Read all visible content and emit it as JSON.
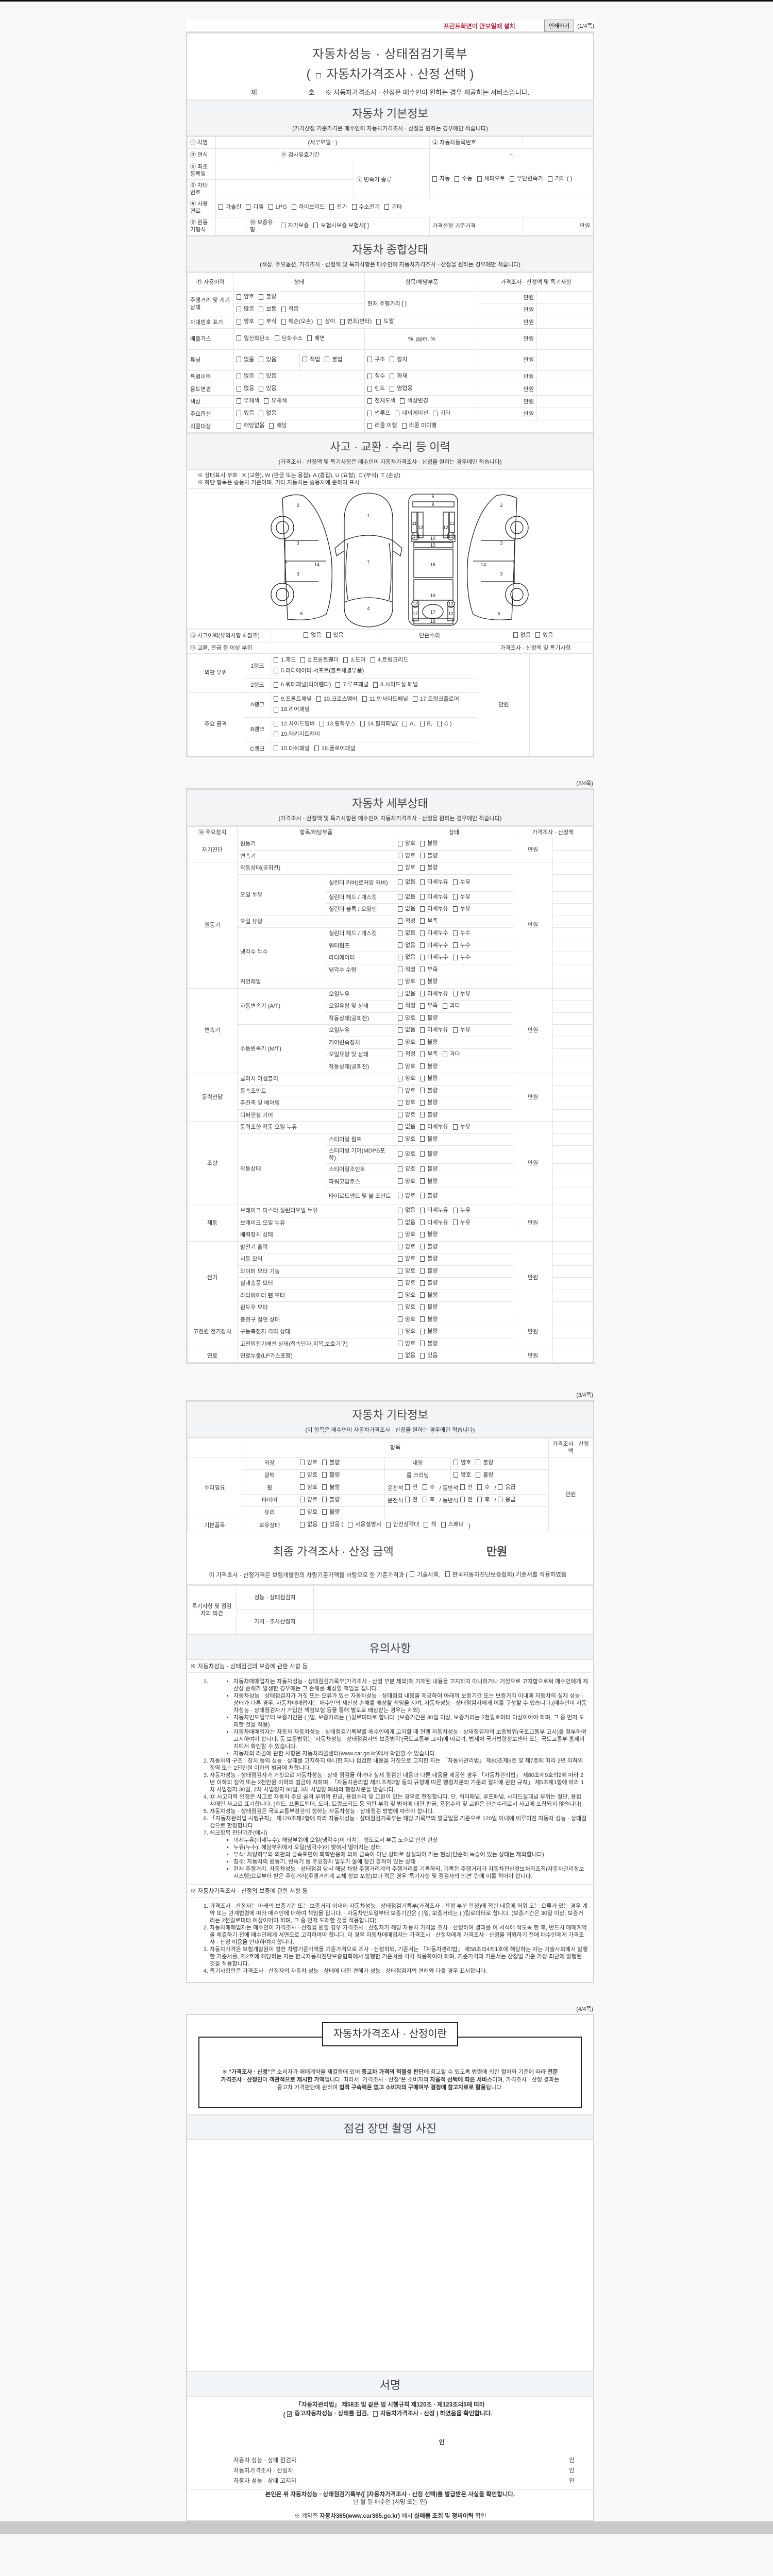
{
  "topbar": {
    "install_link": "프린트화면이 안보일때 설치",
    "print_button": "인쇄하기",
    "page": "(1/4쪽)"
  },
  "title": {
    "line1": "자동차성능 · 상태점검기록부",
    "line2_open": "(",
    "line2": "자동차가격조사 · 산정 선택",
    "line2_close": ")",
    "no_prefix": "제",
    "no_suffix": "호",
    "note": "※ 자동차가격조사 · 산정은 매수인이 원하는 경우 제공하는 서비스입니다."
  },
  "basic": {
    "title": "자동차 기본정보",
    "subtitle": "(가격산정 기준가격은 매수인이 자동차가격조사 · 산정을 원하는 경우에만 적습니다)",
    "car_name": "① 차명",
    "detail_model": "(세부모델 :                          )",
    "reg_no": "② 자동차등록번호",
    "year": "③ 연식",
    "validity": "④ 검사유효기간",
    "tilde": "~",
    "first_reg": "⑤ 최초등록일",
    "vin": "⑥ 차대번호",
    "transmission": "⑦ 변속기 종류",
    "trans_opts": [
      "자동",
      "수동",
      "세미오토",
      "무단변속기",
      "기타 (            )"
    ],
    "fuel": "⑧ 사용연료",
    "fuel_opts": [
      "가솔린",
      "디젤",
      "LPG",
      "하이브리드",
      "전기",
      "수소전기",
      "기타"
    ],
    "engine": "⑨ 원동기형식",
    "warranty": "⑩ 보증유형",
    "warranty_opts": [
      "자가보증",
      "보험사보증 보험사[          ]"
    ],
    "base_price": "가격산정 기준가격",
    "unit": "만원"
  },
  "general": {
    "title": "자동차 종합상태",
    "subtitle": "(색상, 주요옵션, 가격조사 · 산정액 및 특기사항은 매수인이 자동차가격조사 · 산정을 원하는 경우에만 적습니다)",
    "headers": [
      "⑪ 사용이력",
      "상태",
      "항목/해당부품",
      "가격조사 · 산정액 및 특기사항"
    ],
    "rows": [
      {
        "label": "주행거리 및 계기상태",
        "states": [
          [
            "양호",
            "불량"
          ],
          [
            "많음",
            "보통",
            "적음"
          ]
        ],
        "detail": "현재 주행거리 [                        ]",
        "prices": [
          "만원",
          "만원"
        ]
      },
      {
        "label": "차대번호 표기",
        "states": [
          [
            "양호",
            "부식",
            "훼손(오손)",
            "상이",
            "변조(변타)",
            "도말"
          ]
        ],
        "prices": [
          "만원"
        ]
      },
      {
        "label": "배출가스",
        "states": [
          [
            "일산화탄소",
            "탄화수소",
            "매연"
          ]
        ],
        "detail": "%,          ppm,          %",
        "prices": [
          "만원"
        ]
      },
      {
        "label": "튜닝",
        "states": [
          [
            "없음",
            "있음"
          ]
        ],
        "detail_opts": [
          [
            "적법",
            "불법"
          ],
          [
            "구조",
            "장치"
          ]
        ],
        "prices": [
          "만원"
        ]
      },
      {
        "label": "특별이력",
        "states": [
          [
            "없음",
            "있음"
          ]
        ],
        "detail_opts": [
          [
            "침수",
            "화재"
          ]
        ],
        "prices": [
          "만원"
        ]
      },
      {
        "label": "용도변경",
        "states": [
          [
            "없음",
            "있음"
          ]
        ],
        "detail_opts": [
          [
            "렌트",
            "영업용"
          ]
        ],
        "prices": [
          "만원"
        ]
      },
      {
        "label": "색상",
        "states": [
          [
            "무채색",
            "유채색"
          ]
        ],
        "detail_opts": [
          [
            "전체도색",
            "색상변경"
          ]
        ],
        "prices": [
          "만원"
        ]
      },
      {
        "label": "주요옵션",
        "states": [
          [
            "있음",
            "없음"
          ]
        ],
        "detail_opts": [
          [
            "썬루프",
            "네비게이션",
            "기타"
          ]
        ],
        "prices": [
          "만원"
        ]
      },
      {
        "label": "리콜대상",
        "states": [
          [
            "해당없음",
            "해당"
          ]
        ],
        "detail_opts": [
          [
            "리콜 이행",
            "리콜 미이행"
          ]
        ]
      }
    ]
  },
  "accident": {
    "title": "사고 · 교환 · 수리 등 이력",
    "subtitle": "(가격조사 · 산정액 및 특기사항은 매수인이 자동차가격조사 · 산정을 원하는 경우에만 적습니다)",
    "notes": [
      "※ 상태표시 부호 : X (교환), W (판금 또는 용접), A (흠집), U (요철), C (부식), T (손상)",
      "※ 하단 항목은 승용차 기준이며, 기타 자동차는 승용차에 준하여 표시"
    ],
    "history_label": "⑫ 사고이력(유의사항 4.참조)",
    "history_opts": [
      "없음",
      "있음"
    ],
    "simple_label": "단순수리",
    "simple_opts": [
      "없음",
      "있음"
    ],
    "parts_label": "⑬ 교환, 판금 등 이상 부위",
    "price_label": "가격조사 · 산정액 및 특기사항",
    "unit": "만원",
    "groups": [
      {
        "name": "외판 부위",
        "ranks": [
          {
            "rank": "1랭크",
            "parts": [
              "1.후드",
              "2.프론트휀더",
              "3.도어",
              "4.트렁크리드",
              "5.라디에이터 서포트(볼트체결부품)"
            ]
          },
          {
            "rank": "2랭크",
            "parts": [
              "6.쿼터패널(리어휀다)",
              "7.루프패널",
              "8.사이드실 패널"
            ]
          }
        ]
      },
      {
        "name": "주요 골격",
        "ranks": [
          {
            "rank": "A랭크",
            "parts": [
              "9.프론트패널",
              "10.크로스멤버",
              "11.인사이드패널",
              "17.트렁크플로어",
              "18.리어패널"
            ]
          },
          {
            "rank": "B랭크",
            "parts": [
              "12.사이드멤버",
              "13.휠하우스",
              "14.필러패널(",
              "A,",
              "B,",
              "C )",
              "19.패키지트레이"
            ]
          },
          {
            "rank": "C랭크",
            "parts": [
              "15.대쉬패널",
              "16.플로어패널"
            ]
          }
        ]
      }
    ]
  },
  "detail": {
    "page": "(2/4쪽)",
    "title": "자동차 세부상태",
    "subtitle": "(가격조사 · 산정액 및 특기사항은 매수인이 자동차가격조사 · 산정을 원하는 경우에만 적습니다)",
    "headers": [
      "⑭ 주요장치",
      "항목/해당부품",
      "상태",
      "가격조사 · 산정액"
    ],
    "unit": "만원",
    "option_sets": {
      "gb": [
        "양호",
        "불량"
      ],
      "oil": [
        "없음",
        "미세누유",
        "누유"
      ],
      "water": [
        "없음",
        "미세누수",
        "누수"
      ],
      "lv": [
        "적정",
        "부족"
      ],
      "lv3": [
        "적정",
        "부족",
        "과다"
      ],
      "yn": [
        "없음",
        "있음"
      ]
    },
    "groups": [
      {
        "name": "자기진단",
        "rows": [
          {
            "item": "원동기",
            "o": "gb"
          },
          {
            "item": "변속기",
            "o": "gb"
          }
        ]
      },
      {
        "name": "원동기",
        "rows": [
          {
            "item": "작동상태(공회전)",
            "o": "gb"
          },
          {
            "item": "오일 누유",
            "sub": "실린더 커버(로커암 커버)",
            "o": "oil"
          },
          {
            "item": "오일 누유",
            "sub": "실린더 헤드 / 개스킷",
            "o": "oil"
          },
          {
            "item": "오일 누유",
            "sub": "실린더 블록 / 오일팬",
            "o": "oil"
          },
          {
            "item": "오일 유량",
            "o": "lv"
          },
          {
            "item": "냉각수 누수",
            "sub": "실린더 헤드 / 개스킷",
            "o": "water"
          },
          {
            "item": "냉각수 누수",
            "sub": "워터펌프",
            "o": "water"
          },
          {
            "item": "냉각수 누수",
            "sub": "라디에이터",
            "o": "water"
          },
          {
            "item": "냉각수 누수",
            "sub": "냉각수 수량",
            "o": "lv"
          },
          {
            "item": "커먼레일",
            "o": "gb"
          }
        ]
      },
      {
        "name": "변속기",
        "rows": [
          {
            "item": "자동변속기 (A/T)",
            "sub": "오일누유",
            "o": "oil"
          },
          {
            "item": "자동변속기 (A/T)",
            "sub": "오일유량 및 상태",
            "o": "lv3"
          },
          {
            "item": "자동변속기 (A/T)",
            "sub": "작동상태(공회전)",
            "o": "gb"
          },
          {
            "item": "수동변속기 (M/T)",
            "sub": "오일누유",
            "o": "oil"
          },
          {
            "item": "수동변속기 (M/T)",
            "sub": "기어변속장치",
            "o": "gb"
          },
          {
            "item": "수동변속기 (M/T)",
            "sub": "오일유량 및 상태",
            "o": "lv3"
          },
          {
            "item": "수동변속기 (M/T)",
            "sub": "작동상태(공회전)",
            "o": "gb"
          }
        ]
      },
      {
        "name": "동력전달",
        "rows": [
          {
            "item": "클러치 어셈블리",
            "o": "gb"
          },
          {
            "item": "등속조인트",
            "o": "gb"
          },
          {
            "item": "추진축 및 베어링",
            "o": "gb"
          },
          {
            "item": "디퍼렌셜 기어",
            "o": "gb"
          }
        ]
      },
      {
        "name": "조향",
        "rows": [
          {
            "item": "동력조향 작동 오일 누유",
            "o": "oil"
          },
          {
            "item": "작동상태",
            "sub": "스티어링 펌프",
            "o": "gb"
          },
          {
            "item": "작동상태",
            "sub": "스티어링 기어(MDPS포함)",
            "o": "gb"
          },
          {
            "item": "작동상태",
            "sub": "스티어링조인트",
            "o": "gb"
          },
          {
            "item": "작동상태",
            "sub": "파워고압호스",
            "o": "gb"
          },
          {
            "item": "작동상태",
            "sub": "타이로드엔드 및 볼 조인트",
            "o": "gb"
          }
        ]
      },
      {
        "name": "제동",
        "rows": [
          {
            "item": "브레이크 마스터 실린더오일 누유",
            "o": "oil"
          },
          {
            "item": "브레이크 오일 누유",
            "o": "oil"
          },
          {
            "item": "배력장치 상태",
            "o": "gb"
          }
        ]
      },
      {
        "name": "전기",
        "rows": [
          {
            "item": "발전기 출력",
            "o": "gb"
          },
          {
            "item": "시동 모터",
            "o": "gb"
          },
          {
            "item": "와이퍼 모터 기능",
            "o": "gb"
          },
          {
            "item": "실내송풍 모터",
            "o": "gb"
          },
          {
            "item": "라디에이터 팬 모터",
            "o": "gb"
          },
          {
            "item": "윈도우 모터",
            "o": "gb"
          }
        ]
      },
      {
        "name": "고전원 전기장치",
        "rows": [
          {
            "item": "충전구 절연 상태",
            "o": "gb"
          },
          {
            "item": "구동축전지 격리 상태",
            "o": "gb"
          },
          {
            "item": "고전원전기배선 상태(접속단자,피복,보호기구)",
            "o": "gb"
          }
        ]
      },
      {
        "name": "연료",
        "rows": [
          {
            "item": "연료누출(LP가스포함)",
            "o": "yn"
          }
        ]
      }
    ]
  },
  "other": {
    "page": "(3/4쪽)",
    "title": "자동차 기타정보",
    "subtitle": "(이 항목은 매수인이 자동차가격조사 · 산정을 원하는 경우에만 적습니다)",
    "item_header": "항목",
    "price_header": "가격조사 · 산정액",
    "unit": "만원",
    "repair_group": "수리필요",
    "basic_group": "기본품목",
    "rows": [
      {
        "a": "외장",
        "ao": [
          "양호",
          "불량"
        ],
        "b": "내장",
        "bo": [
          "양호",
          "불량"
        ]
      },
      {
        "a": "광택",
        "ao": [
          "양호",
          "불량"
        ],
        "b": "룸 크리닝",
        "bo": [
          "양호",
          "불량"
        ]
      },
      {
        "a": "휠",
        "ao": [
          "양호",
          "불량"
        ],
        "seq": [
          {
            "t": "운전석"
          },
          {
            "c": "전"
          },
          {
            "c": "후"
          },
          {
            "t": "/ 동반석"
          },
          {
            "c": "전"
          },
          {
            "c": "후"
          },
          {
            "t": "/"
          },
          {
            "c": "응급"
          }
        ]
      },
      {
        "a": "타이어",
        "ao": [
          "양호",
          "불량"
        ],
        "seq": [
          {
            "t": "운전석"
          },
          {
            "c": "전"
          },
          {
            "c": "후"
          },
          {
            "t": "/ 동반석"
          },
          {
            "c": "전"
          },
          {
            "c": "후"
          },
          {
            "t": "/"
          },
          {
            "c": "응급"
          }
        ]
      },
      {
        "a": "유리",
        "ao": [
          "양호",
          "불량"
        ]
      }
    ],
    "holding_label": "보유상태",
    "holding_seq": [
      {
        "c": "없음"
      },
      {
        "c": "있음 ("
      },
      {
        "c": "사용설명서"
      },
      {
        "c": "안전삼각대"
      },
      {
        "c": "잭"
      },
      {
        "c": "스패너"
      },
      {
        "t": ")"
      }
    ],
    "final_title": "최종 가격조사 · 산정 금액",
    "final_unit": "만원",
    "final_seq": [
      {
        "t": "이 가격조사 · 산정가격은 보험개발원의 차량기준가액을 바탕으로 한 기준가격과 ("
      },
      {
        "c": "기술사회,"
      },
      {
        "c": "한국자동차진단보증협회) 기준서를 적용하였음"
      }
    ],
    "opinion_label": "특기사항 및 점검자의 의견",
    "inspector": "성능 · 상태점검자",
    "appraiser": "가격 · 조사산정자"
  },
  "notes": {
    "title": "유의사항",
    "s1_heading": "※ 자동차성능 · 상태점검의 보증에 관한 사항 등",
    "s1_item1_bullets": [
      "자동차매매업자는 자동차성능 · 상태점검기록부(가격조사 · 산정 부분 제외)에 기재된 내용을 고지하지 아니하거나 거짓으로 고지함으로써 매수인에게 재산상 손해가 발생한 경우에는 그 손해를 배상할 책임을 집니다.",
      "자동차성능 · 상태점검자가 거짓 또는 오류가 있는 자동차성능 · 상태점검 내용을 제공하여 아래의 보증기간 또는 보증거리 이내에 자동차의 실제 성능 · 상태가 다른 경우, 자동차매매업자는 매수인의 재산상 손해를 배상할 책임을 지며, 자동차성능 · 상태점검자에게 이를 구상할 수 있습니다.(매수인이 자동차성능 · 상태점검자가 가입한 책임보험 등을 통해 별도로 배상받는 경우는 제외)",
      "자동차인도일부터 보증기간은 (       )일, 보증거리는 (       )킬로미터로 합니다. (보증기간은 30일 이상, 보증거리는 2천킬로미터 이상이어야 하며, 그 중 먼저 도래한 것을 적용)",
      "자동차매매업자는 자동차 자동차성능 · 상태점검기록부를 매수인에게 고지할 때 현행 자동차성능 · 상태점검자의 보증범위(국토교통부 고시)를 첨부하여 고지하여야 합니다. 동 보증범위는 '자동차성능 · 상태점검자의 보증범위'(국토교통부 고시)에 따르며, 법제처 국가법령정보센터 또는 국토교통부 홈페이지에서 확인할 수 있습니다.",
      "자동차의 리콜에 관한 사항은 자동차리콜센터(www.car.go.kr)에서 확인할 수 있습니다."
    ],
    "s1_items": [
      "자동차의 구조 · 장치 등의 성능 · 상태를 고지하지 아니한 자나 점검한 내용을 거짓으로 고지한 자는 「자동차관리법」 제80조제6호 및 제7호에 따라 2년 이하의 징역 또는 2천만원 이하의 벌금에 처합니다.",
      "자동차성능 · 상태점검자가 거짓으로 자동차성능 · 상태 점검을 하거나 실제 점검한 내용과 다른 내용을 제공한 경우 「자동차관리법」 제80조제9호의2에 따라 2년 이하의 징역 또는 2천만원 이하의 벌금에 처하며, 「자동차관리법 제21조제2항 등의 규정에 따른 행정처분의 기준과 절차에 관한 규칙」 제5조제1항에 따라 1차 사업정지 30일, 2차 사업정지 90일, 3차 사업장 폐쇄의 행정처분을 받습니다.",
      "⑫ 사고이력 인정은 사고로 자동차 주요 골격 부위의 판금, 용접수리 및 교환이 있는 경우로 한정합니다. 단, 쿼터패널, 루프패널, 사이드실패널 부위는 절단, 용접 시에만 사고로 표기합니다. (후드, 프론트펜더, 도어, 트렁크리드 등 외판 부위 및 범퍼에 대한 판금, 용접수리 및 교환은 단순수리로서 사고에 포함되지 않습니다)",
      "자동차성능 · 상태점검은 국토교통부장관이 정하는 자동차성능 · 상태점검 방법에 따라야 합니다.",
      "「자동차관리법 시행규칙」 제120조제2항에 따라 자동차성능 · 상태점검기록부는 해당 기록부의 발급일을 기준으로 120일 이내에 이루어진 자동차 성능 · 상태점검으로 한정합니다"
    ],
    "s1_item7": "체크항목 판단기준(예시)",
    "s1_item7_bullets": [
      "미세누유(미세누수): 해당부위에 오일(냉각수)이 비치는 정도로서 부품 노후로 인한 현상",
      "누유(누수): 해당부위에서 오일(냉각수)이 맺혀서 떨어지는 상태",
      "부식: 차량하부와 외판의 금속표면이 화학반응에 의해 금속이 아닌 상태로 상실되어 가는 현상(단순히 녹슬어 있는 상태는 제외합니다)",
      "침수: 자동차의 원동기, 변속기 등 주요장치 일부가 물에 잠긴 흔적이 있는 상태",
      "현재 주행거리: 자동차성능 · 상태점검 당시 해당 차량 주행거리계의 주행거리를 기록하되, 기록한 주행거리가 자동차전산정보처리조직(자동차관리정보시스템)으로부터 받은 주행거리(주행거리계 교체 정보 포함)보다 적은 경우 '특기사항 및 점검자의 의견' 란에 이를 적어야 합니다."
    ],
    "s2_heading": "※ 자동차가격조사 · 산정의 보증에 관한 사항 등",
    "s2_items": [
      "가격조사 · 산정자는 아래의 보증기간 또는 보증거리 이내에 자동차성능 · 상태점검기록부(가격조사 · 산정 부분 한정)에 적힌 내용에 허위 또는 오류가 있는 경우 계약 또는 관계법령에 따라 매수인에 대하여 책임을 집니다. · 자동차인도일부터 보증기간은 (      )일, 보증거리는 (      )킬로미터로 합니다. (보증기간은 30일 이상, 보증거리는 2천킬로미터 이상이어야 하며, 그 중 먼저 도래한 것을 적용합니다)",
      "자동차매매업자는 매수인이 가격조사 · 산정을 원할 경우 가격조사 · 산정자가 해당 자동차 가격을 조사 · 산정하여 결과를 이 서식에 적도록 한 후, 반드시 매매계약을 체결하기 전에 매수인에게 서면으로 고지하여야 합니다. 이 경우 자동차매매업자는 가격조사 · 산정자에게 가격조사 · 산정을 의뢰하기 전에 매수인에게 가격조사 · 산정 비용을 안내하여야 합니다.",
      "자동차가격은 보험개발원이 정한 차량기준가액을 기준가격으로 조사 · 산정하되, 기준서는 「자동차관리법」 제58조의4제1호에 해당하는 자는 기술사회에서 발행한 기준서를, 제2호에 해당하는 자는 한국자동차진단보증협회에서 발행한 기준서를 각각 적용하여야 하며, 기준가격과 기준서는 산정일 기준 가장 최근에 발행된 것을 적용합니다.",
      "특기사항란은 가격조사 · 산정자의 자동차 성능 · 상태에 대한 견해가 성능 · 상태점검자의 견해와 다를 경우 표시합니다."
    ]
  },
  "page4": {
    "page": "(4/4쪽)",
    "def_title": "자동차가격조사 · 산정이란",
    "def_segments": [
      {
        "t": "※ "
      },
      {
        "t": "\"가격조사 · 산정\"",
        "b": true
      },
      {
        "t": "은 소비자가 매매계약을 체결함에 있어 "
      },
      {
        "t": "중고차 가격의 적절성 판단",
        "b": true
      },
      {
        "t": "에 참고할 수 있도록 법령에 의한 절차와 기준에 따라 "
      },
      {
        "t": "전문 가격조사 · 산정인",
        "b": true
      },
      {
        "t": "이 "
      },
      {
        "t": "객관적으로 제시한 가액",
        "b": true
      },
      {
        "t": "입니다. 따라서 \"가격조사 · 산정\"은 소비자의 "
      },
      {
        "t": "자율적 선택에 따른 서비스",
        "b": true
      },
      {
        "t": "이며, 가격조사 · 산정 결과는 중고차 가격판단에 관하여 "
      },
      {
        "t": "법적 구속력은 없고 소비자의 구매여부 결정에 참고자료로 활용",
        "b": true
      },
      {
        "t": "됩니다."
      }
    ],
    "photo_title": "점검 장면 촬영 사진",
    "sign_title": "서명",
    "law_line": "「자동차관리법」 제58조 및 같은 법 시행규칙 제120조 · 제123조의5에 따라",
    "confirm_seq": [
      {
        "t": "("
      },
      {
        "c": "중고자동차성능 · 상태를 점검,",
        "checked": true
      },
      {
        "c": "자동차가격조사  · 산정 ) 하였음을 확인합니다."
      }
    ],
    "seal": "인",
    "signers": [
      {
        "role": "자동차 성능 · 상태 점검자",
        "seal": "인"
      },
      {
        "role": "자동차가격조사  · 산정자",
        "seal": "인"
      },
      {
        "role": "자동차 성능 · 상태 고지자",
        "seal": "인"
      }
    ],
    "receipt": "본인은 위 자동차성능 · 상태점검기록부([   ]자동차가격조사 · 산정 선택)를 발급받은 사실을 확인합니다.",
    "date_line": "년     월     일     매수인                    (서명 또는 인)",
    "footer_segments": [
      {
        "t": "※ 계약전 "
      },
      {
        "t": "자동차365(www.car365.go.kr)",
        "b": true
      },
      {
        "t": " 에서 "
      },
      {
        "t": "실매물 조회",
        "b": true
      },
      {
        "t": " 및 "
      },
      {
        "t": "정비이력",
        "b": true
      },
      {
        "t": " 확인"
      }
    ]
  }
}
